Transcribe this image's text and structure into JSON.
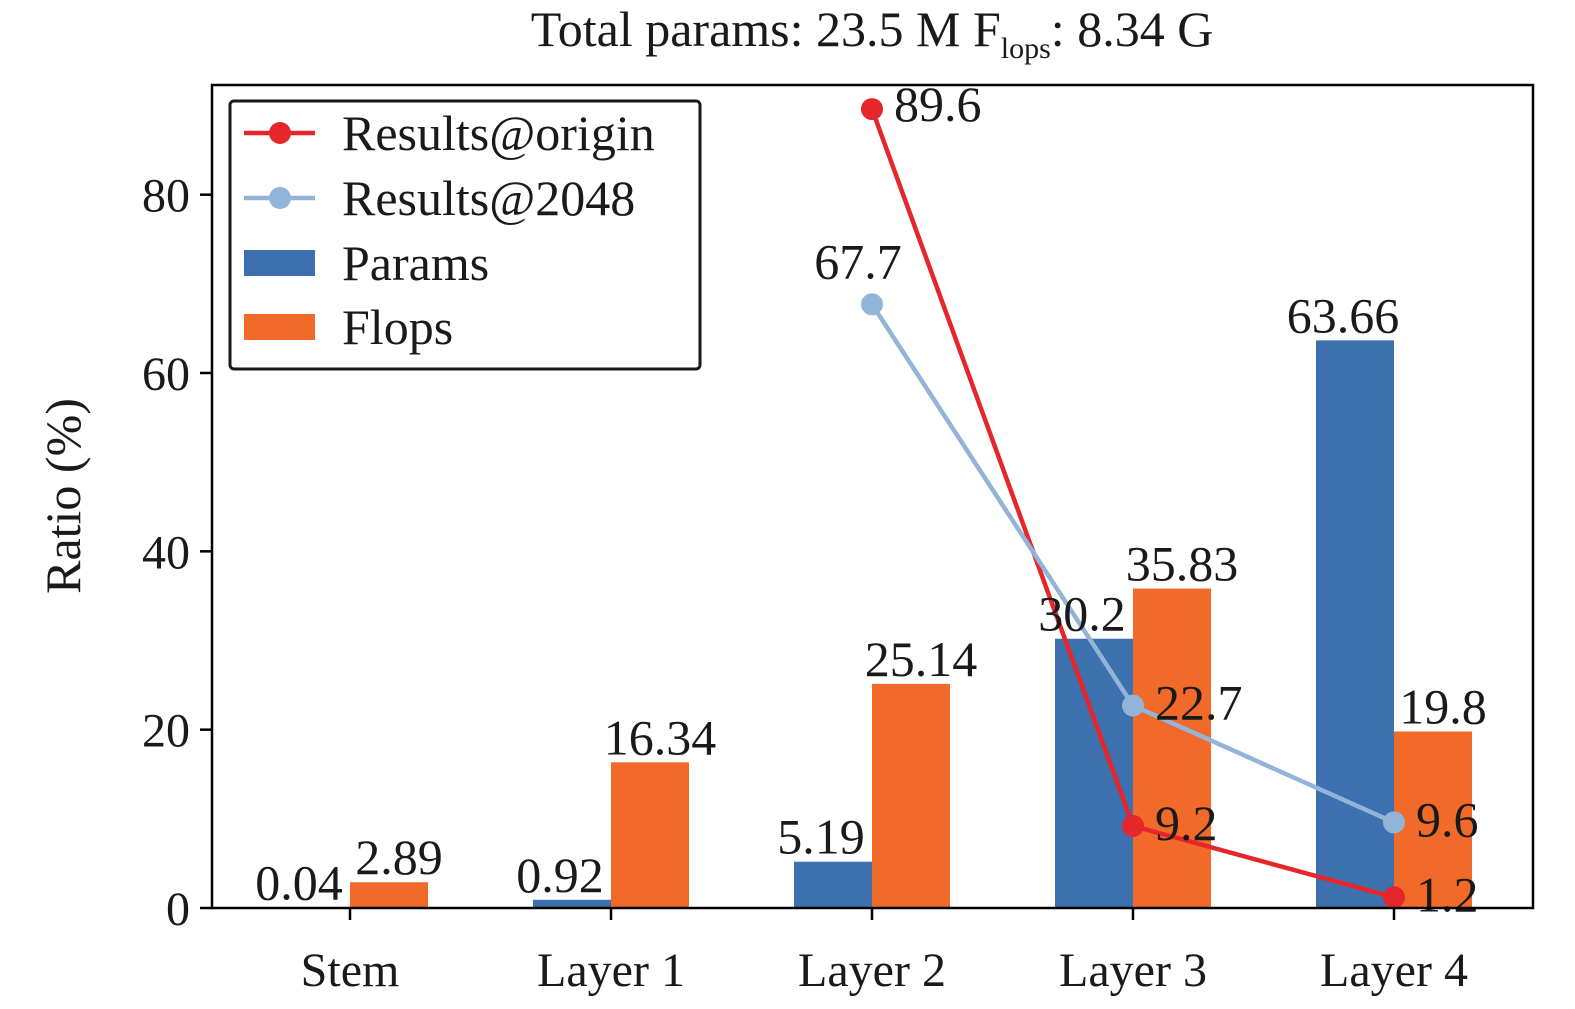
{
  "chart_data": {
    "type": "bar",
    "title": {
      "prefix": "Total params: 23.5 M  F",
      "subscript": "lops",
      "suffix": ": 8.34 G"
    },
    "ylabel": "Ratio (%)",
    "ylim": [
      0,
      92
    ],
    "yticks": [
      0,
      20,
      40,
      60,
      80
    ],
    "categories": [
      "Stem",
      "Layer 1",
      "Layer 2",
      "Layer 3",
      "Layer 4"
    ],
    "bar_series": [
      {
        "name": "Params",
        "color": "#3d70ae",
        "values": [
          0.04,
          0.92,
          5.19,
          30.2,
          63.66
        ],
        "labels": [
          "0.04",
          "0.92",
          "5.19",
          "30.2",
          "63.66"
        ]
      },
      {
        "name": "Flops",
        "color": "#f26a29",
        "values": [
          2.89,
          16.34,
          25.14,
          35.83,
          19.8
        ],
        "labels": [
          "2.89",
          "16.34",
          "25.14",
          "35.83",
          "19.8"
        ]
      }
    ],
    "line_series": [
      {
        "name": "Results@origin",
        "color": "#e5262b",
        "x_index": [
          2,
          3,
          4
        ],
        "values": [
          89.6,
          9.2,
          1.2
        ],
        "labels": [
          "89.6",
          "9.2",
          "1.2"
        ]
      },
      {
        "name": "Results@2048",
        "color": "#92b4d8",
        "x_index": [
          2,
          3,
          4
        ],
        "values": [
          67.7,
          22.7,
          9.6
        ],
        "labels": [
          "67.7",
          "22.7",
          "9.6"
        ]
      }
    ],
    "legend": {
      "position": "top-left",
      "entries": [
        "Results@origin",
        "Results@2048",
        "Params",
        "Flops"
      ]
    },
    "grid": false
  }
}
